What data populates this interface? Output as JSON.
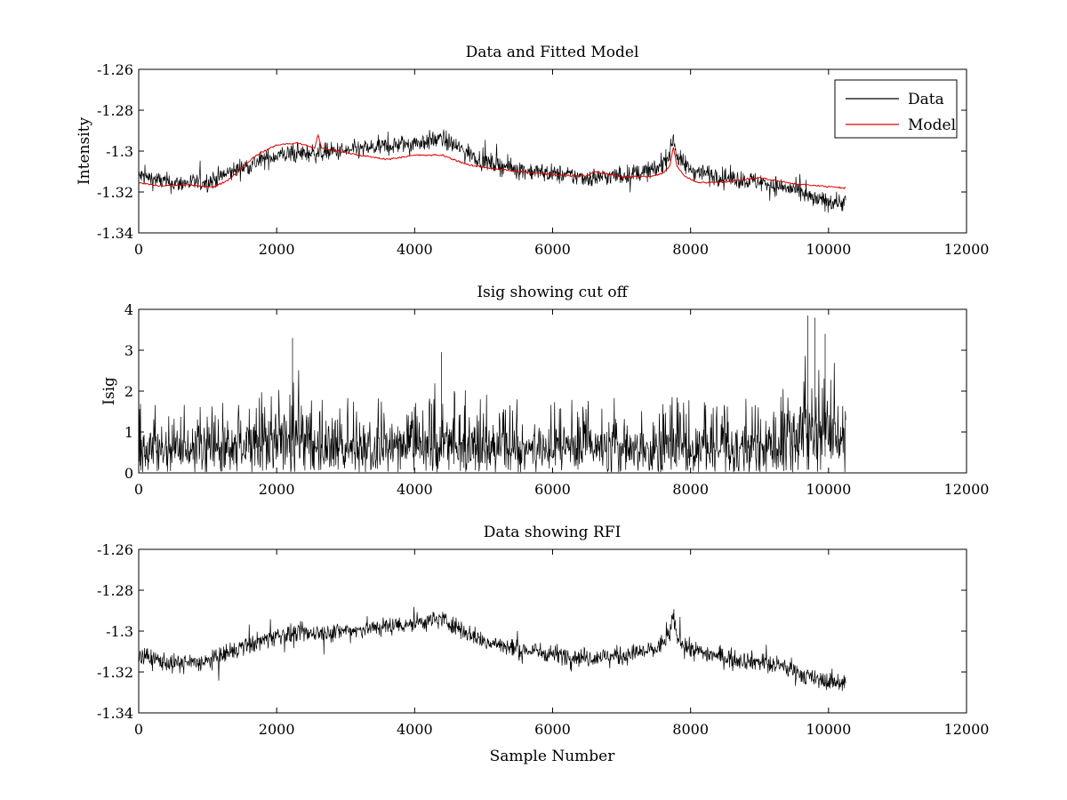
{
  "chart_data": [
    {
      "id": "top",
      "type": "line",
      "title": "Data and Fitted Model",
      "xlabel": "",
      "ylabel": "Intensity",
      "xlim": [
        0,
        12000
      ],
      "ylim": [
        -1.34,
        -1.26
      ],
      "xticks": [
        "0",
        "2000",
        "4000",
        "6000",
        "8000",
        "10000",
        "12000"
      ],
      "yticks": [
        "-1.26",
        "-1.28",
        "-1.3",
        "-1.32",
        "-1.34"
      ],
      "legend": {
        "position": "top-right",
        "entries": [
          "Data",
          "Model"
        ]
      },
      "series": [
        {
          "name": "Data",
          "color": "#000000",
          "noise": 0.0045,
          "x": [
            0,
            500,
            1000,
            1500,
            2000,
            2500,
            3000,
            3500,
            4000,
            4400,
            5000,
            5500,
            6000,
            6500,
            7000,
            7500,
            7700,
            7750,
            7800,
            8000,
            8500,
            9000,
            9500,
            9800,
            10250
          ],
          "values": [
            -1.312,
            -1.316,
            -1.315,
            -1.308,
            -1.302,
            -1.301,
            -1.3,
            -1.298,
            -1.296,
            -1.294,
            -1.305,
            -1.309,
            -1.311,
            -1.313,
            -1.312,
            -1.309,
            -1.302,
            -1.292,
            -1.303,
            -1.309,
            -1.313,
            -1.315,
            -1.319,
            -1.324,
            -1.325
          ]
        },
        {
          "name": "Model",
          "color": "#e00000",
          "x": [
            0,
            300,
            700,
            1100,
            1300,
            1700,
            2000,
            2300,
            2550,
            2600,
            2650,
            3200,
            3600,
            4000,
            4400,
            4800,
            5500,
            6200,
            6500,
            6600,
            7000,
            7400,
            7600,
            7700,
            7750,
            7800,
            7900,
            8100,
            8500,
            9000,
            9500,
            10250
          ],
          "values": [
            -1.3155,
            -1.317,
            -1.3165,
            -1.3175,
            -1.314,
            -1.302,
            -1.297,
            -1.296,
            -1.2985,
            -1.292,
            -1.2985,
            -1.302,
            -1.304,
            -1.302,
            -1.302,
            -1.307,
            -1.31,
            -1.312,
            -1.312,
            -1.31,
            -1.3125,
            -1.3125,
            -1.311,
            -1.307,
            -1.298,
            -1.307,
            -1.312,
            -1.3155,
            -1.315,
            -1.313,
            -1.316,
            -1.318
          ]
        }
      ]
    },
    {
      "id": "mid",
      "type": "line",
      "title": "Isig showing cut off",
      "xlabel": "",
      "ylabel": "Isig",
      "xlim": [
        0,
        12000
      ],
      "ylim": [
        0,
        4
      ],
      "xticks": [
        "0",
        "2000",
        "4000",
        "6000",
        "8000",
        "10000",
        "12000"
      ],
      "yticks": [
        "4",
        "3",
        "2",
        "1",
        "0"
      ],
      "series": [
        {
          "name": "Isig",
          "color": "#000000",
          "envelope_x": [
            0,
            1500,
            2000,
            2200,
            2500,
            3000,
            4000,
            4400,
            5000,
            6000,
            7000,
            7500,
            8000,
            9000,
            9400,
            9800,
            10250
          ],
          "envelope_values": [
            1.5,
            1.5,
            2.1,
            2.5,
            1.7,
            1.6,
            1.7,
            2.0,
            1.7,
            1.6,
            1.6,
            1.7,
            1.6,
            1.6,
            2.2,
            2.8,
            2.2
          ],
          "peak_x": [
            2230,
            4390,
            9700,
            9800,
            9950
          ],
          "peak_values": [
            3.3,
            2.95,
            3.85,
            3.8,
            3.4
          ]
        }
      ]
    },
    {
      "id": "bot",
      "type": "line",
      "title": "Data showing RFI",
      "xlabel": "Sample Number",
      "ylabel": "",
      "xlim": [
        0,
        12000
      ],
      "ylim": [
        -1.34,
        -1.26
      ],
      "xticks": [
        "0",
        "2000",
        "4000",
        "6000",
        "8000",
        "10000",
        "12000"
      ],
      "yticks": [
        "-1.26",
        "-1.28",
        "-1.3",
        "-1.32",
        "-1.34"
      ],
      "series": [
        {
          "name": "Data",
          "color": "#000000",
          "noise": 0.0045,
          "x": [
            0,
            500,
            1000,
            1500,
            2000,
            2500,
            3000,
            3500,
            4000,
            4400,
            5000,
            5500,
            6000,
            6500,
            7000,
            7500,
            7700,
            7750,
            7800,
            8000,
            8500,
            9000,
            9500,
            9800,
            10250
          ],
          "values": [
            -1.312,
            -1.316,
            -1.315,
            -1.308,
            -1.302,
            -1.301,
            -1.3,
            -1.298,
            -1.296,
            -1.294,
            -1.305,
            -1.309,
            -1.311,
            -1.313,
            -1.312,
            -1.309,
            -1.302,
            -1.292,
            -1.303,
            -1.309,
            -1.313,
            -1.315,
            -1.319,
            -1.324,
            -1.325
          ]
        }
      ]
    }
  ]
}
